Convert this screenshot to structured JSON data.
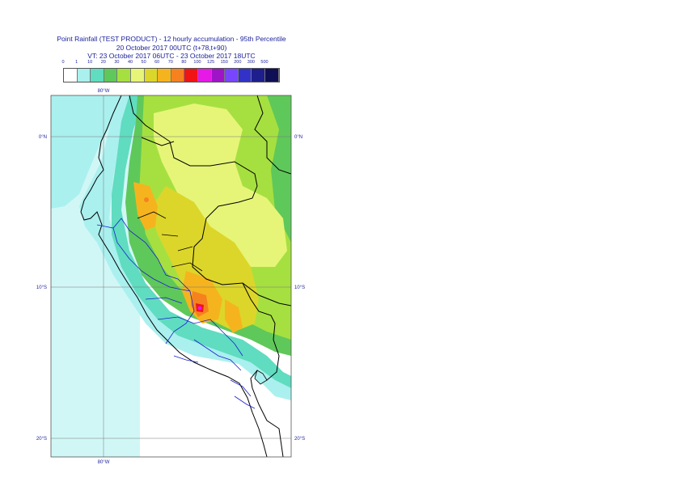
{
  "title": {
    "line1": "Point Rainfall (TEST PRODUCT) - 12 hourly accumulation - 95th Percentile",
    "line2": "20 October 2017 00UTC (t+78,t+90)",
    "line3": "VT: 23 October 2017 06UTC - 23 October 2017 18UTC"
  },
  "legend": {
    "thresholds": [
      "0",
      "1",
      "10",
      "20",
      "30",
      "40",
      "50",
      "60",
      "70",
      "80",
      "100",
      "125",
      "150",
      "200",
      "300",
      "500"
    ],
    "colors": [
      "#ffffff",
      "#aaf0ee",
      "#60dcc0",
      "#5fc85a",
      "#a6e040",
      "#e6f578",
      "#dcd62a",
      "#f5b41e",
      "#f5821e",
      "#f01414",
      "#e619e6",
      "#a014c8",
      "#7846ff",
      "#3232c8",
      "#1e1e8c",
      "#0f0f55"
    ]
  },
  "map": {
    "lon_labels": [
      "80°W",
      "80°W"
    ],
    "lat_labels": [
      "0°N",
      "10°S",
      "20°S"
    ],
    "lat_labels_right": [
      "0°N",
      "10°S",
      "20°S"
    ],
    "region": "Peru",
    "colors": {
      "ocean": "#aaf0ee",
      "coast_band": "#60dcc0",
      "green": "#5fc85a",
      "light_green": "#a6e040",
      "yellow_green": "#e6f578",
      "yellow": "#dcd62a",
      "orange": "#f5b41e",
      "dark_orange": "#f5821e",
      "red": "#f01414",
      "magenta": "#e619e6",
      "border_black": "#000000",
      "border_blue": "#1a1fd0",
      "grid": "#666666"
    }
  }
}
